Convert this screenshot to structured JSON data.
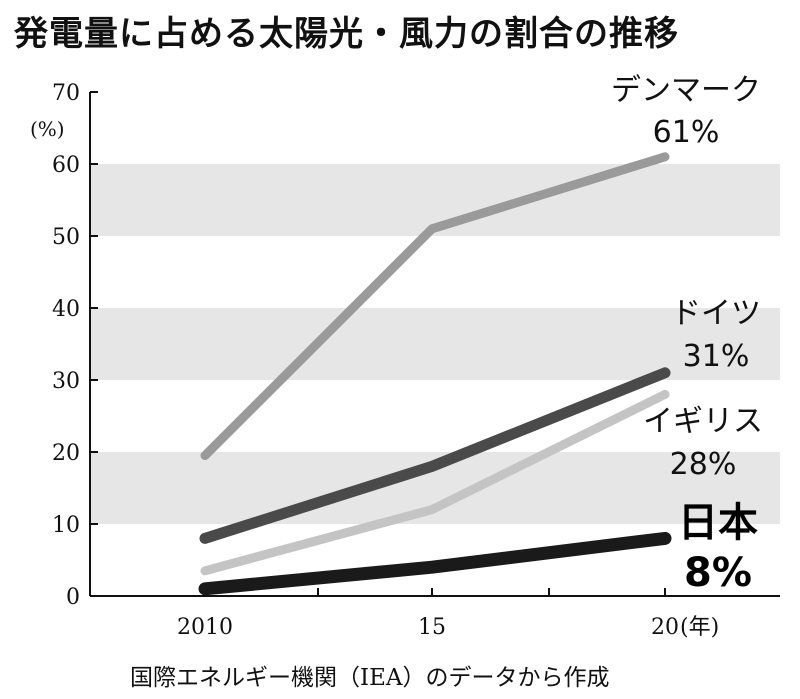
{
  "title": "発電量に占める太陽光・風力の割合の推移",
  "source": "国際エネルギー機関（IEA）のデータから作成",
  "chart_data": {
    "type": "line",
    "title": "発電量に占める太陽光・風力の割合の推移",
    "ylabel_unit": "(%)",
    "x_unit": "(年)",
    "x": [
      2010,
      2015,
      2020
    ],
    "x_tick_labels": [
      "2010",
      "15",
      "20"
    ],
    "ylim": [
      0,
      70
    ],
    "y_ticks": [
      0,
      10,
      20,
      30,
      40,
      50,
      60,
      70
    ],
    "grid": "alternating horizontal bands",
    "series": [
      {
        "name": "デンマーク",
        "value_label": "61%",
        "values": [
          19.5,
          51,
          61
        ],
        "color": "#9a9a9a",
        "width": 9
      },
      {
        "name": "ドイツ",
        "value_label": "31%",
        "values": [
          8,
          18,
          31
        ],
        "color": "#4a4a4a",
        "width": 11
      },
      {
        "name": "イギリス",
        "value_label": "28%",
        "values": [
          3.5,
          12,
          28
        ],
        "color": "#c4c4c4",
        "width": 9
      },
      {
        "name": "日本",
        "value_label": "8%",
        "values": [
          1,
          4,
          8
        ],
        "color": "#1a1a1a",
        "width": 13
      }
    ]
  }
}
